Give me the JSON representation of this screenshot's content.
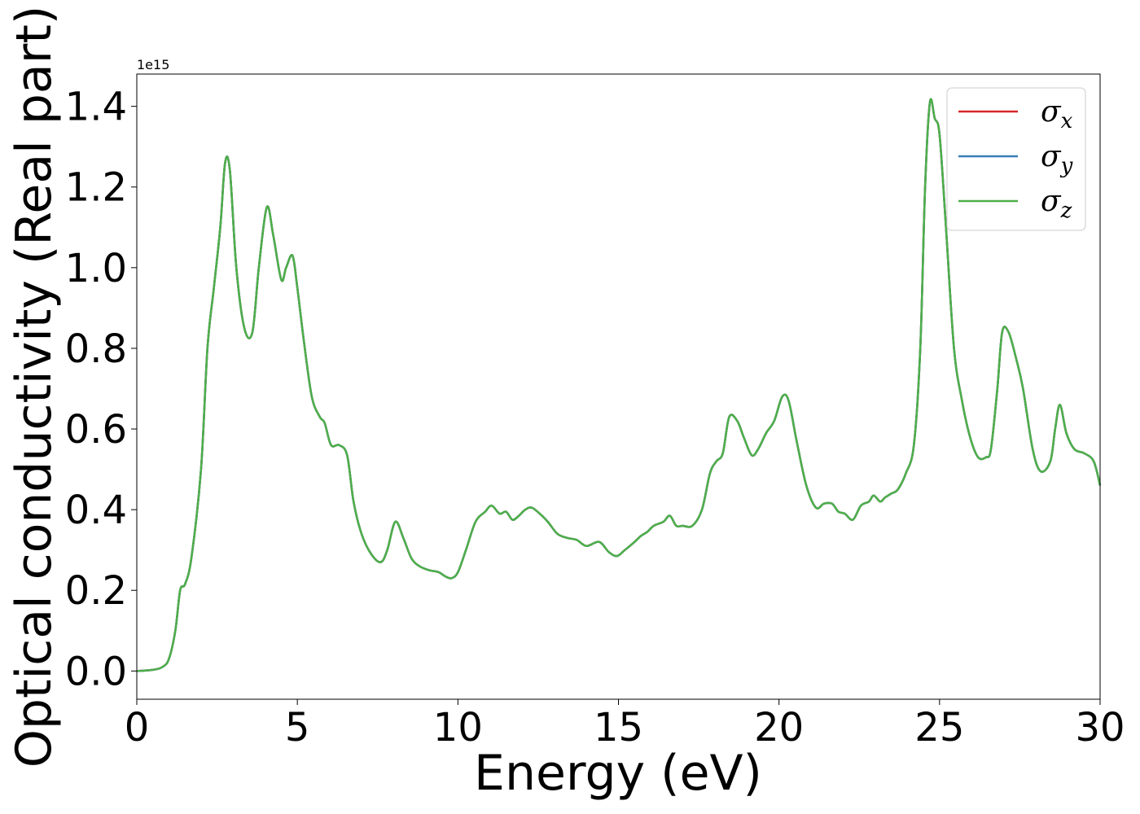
{
  "chart_data": {
    "type": "line",
    "xlabel": "Energy (eV)",
    "ylabel": "Optical conductivity (Real part)",
    "offset_text": "1e15",
    "xlim": [
      0,
      30
    ],
    "ylim": [
      -0.07,
      1.48
    ],
    "xticks": [
      0,
      5,
      10,
      15,
      20,
      25,
      30
    ],
    "xtick_labels": [
      "0",
      "5",
      "10",
      "15",
      "20",
      "25",
      "30"
    ],
    "yticks": [
      0.0,
      0.2,
      0.4,
      0.6,
      0.8,
      1.0,
      1.2,
      1.4
    ],
    "ytick_labels": [
      "0.0",
      "0.2",
      "0.4",
      "0.6",
      "0.8",
      "1.0",
      "1.2",
      "1.4"
    ],
    "legend_position": "top-right",
    "grid": false,
    "x": [
      0,
      0.5,
      0.8,
      1.0,
      1.2,
      1.35,
      1.5,
      1.7,
      2.0,
      2.2,
      2.4,
      2.6,
      2.75,
      2.9,
      3.1,
      3.35,
      3.6,
      3.8,
      4.05,
      4.25,
      4.5,
      4.65,
      4.85,
      5.0,
      5.2,
      5.45,
      5.7,
      5.85,
      6.05,
      6.3,
      6.55,
      6.75,
      7.0,
      7.3,
      7.6,
      7.8,
      8.05,
      8.3,
      8.55,
      8.8,
      9.1,
      9.4,
      9.6,
      9.8,
      10.0,
      10.25,
      10.55,
      10.85,
      11.05,
      11.3,
      11.5,
      11.7,
      11.9,
      12.1,
      12.3,
      12.55,
      12.8,
      13.1,
      13.4,
      13.7,
      14.0,
      14.4,
      14.7,
      14.95,
      15.2,
      15.5,
      15.7,
      15.9,
      16.1,
      16.4,
      16.6,
      16.8,
      17.0,
      17.3,
      17.6,
      17.85,
      18.05,
      18.25,
      18.45,
      18.7,
      18.9,
      19.15,
      19.35,
      19.6,
      19.85,
      20.1,
      20.3,
      20.55,
      20.85,
      21.15,
      21.4,
      21.65,
      21.85,
      22.05,
      22.3,
      22.55,
      22.8,
      22.95,
      23.15,
      23.3,
      23.5,
      23.7,
      23.95,
      24.2,
      24.4,
      24.55,
      24.7,
      24.85,
      25.0,
      25.2,
      25.45,
      25.7,
      25.95,
      26.2,
      26.45,
      26.6,
      26.8,
      26.95,
      27.15,
      27.4,
      27.6,
      27.9,
      28.15,
      28.45,
      28.6,
      28.75,
      28.95,
      29.2,
      29.5,
      29.8,
      30.0
    ],
    "series": [
      {
        "name": "σx",
        "color": "#d62728",
        "values": [
          0.0,
          0.003,
          0.01,
          0.03,
          0.1,
          0.2,
          0.215,
          0.28,
          0.5,
          0.8,
          0.95,
          1.1,
          1.26,
          1.24,
          1.0,
          0.85,
          0.84,
          1.0,
          1.15,
          1.08,
          0.97,
          1.0,
          1.03,
          0.95,
          0.82,
          0.68,
          0.63,
          0.615,
          0.56,
          0.56,
          0.535,
          0.42,
          0.34,
          0.29,
          0.27,
          0.3,
          0.37,
          0.33,
          0.28,
          0.26,
          0.25,
          0.245,
          0.235,
          0.23,
          0.245,
          0.3,
          0.37,
          0.395,
          0.41,
          0.39,
          0.395,
          0.375,
          0.385,
          0.4,
          0.405,
          0.39,
          0.37,
          0.34,
          0.33,
          0.325,
          0.31,
          0.32,
          0.295,
          0.285,
          0.3,
          0.32,
          0.335,
          0.345,
          0.36,
          0.37,
          0.385,
          0.36,
          0.36,
          0.36,
          0.4,
          0.49,
          0.52,
          0.54,
          0.63,
          0.62,
          0.58,
          0.535,
          0.55,
          0.59,
          0.62,
          0.68,
          0.67,
          0.57,
          0.46,
          0.405,
          0.415,
          0.415,
          0.395,
          0.39,
          0.375,
          0.41,
          0.42,
          0.435,
          0.42,
          0.43,
          0.44,
          0.45,
          0.49,
          0.56,
          0.8,
          1.2,
          1.41,
          1.37,
          1.33,
          1.1,
          0.8,
          0.67,
          0.58,
          0.53,
          0.53,
          0.55,
          0.7,
          0.84,
          0.84,
          0.77,
          0.7,
          0.55,
          0.495,
          0.52,
          0.6,
          0.66,
          0.59,
          0.55,
          0.54,
          0.52,
          0.46
        ]
      },
      {
        "name": "σy",
        "color": "#377eb8",
        "values": [
          0.0,
          0.003,
          0.01,
          0.03,
          0.1,
          0.2,
          0.215,
          0.28,
          0.5,
          0.8,
          0.95,
          1.1,
          1.26,
          1.24,
          1.0,
          0.85,
          0.84,
          1.0,
          1.15,
          1.08,
          0.97,
          1.0,
          1.03,
          0.95,
          0.82,
          0.68,
          0.63,
          0.615,
          0.56,
          0.56,
          0.535,
          0.42,
          0.34,
          0.29,
          0.27,
          0.3,
          0.37,
          0.33,
          0.28,
          0.26,
          0.25,
          0.245,
          0.235,
          0.23,
          0.245,
          0.3,
          0.37,
          0.395,
          0.41,
          0.39,
          0.395,
          0.375,
          0.385,
          0.4,
          0.405,
          0.39,
          0.37,
          0.34,
          0.33,
          0.325,
          0.31,
          0.32,
          0.295,
          0.285,
          0.3,
          0.32,
          0.335,
          0.345,
          0.36,
          0.37,
          0.385,
          0.36,
          0.36,
          0.36,
          0.4,
          0.49,
          0.52,
          0.54,
          0.63,
          0.62,
          0.58,
          0.535,
          0.55,
          0.59,
          0.62,
          0.68,
          0.67,
          0.57,
          0.46,
          0.405,
          0.415,
          0.415,
          0.395,
          0.39,
          0.375,
          0.41,
          0.42,
          0.435,
          0.42,
          0.43,
          0.44,
          0.45,
          0.49,
          0.56,
          0.8,
          1.2,
          1.41,
          1.37,
          1.33,
          1.1,
          0.8,
          0.67,
          0.58,
          0.53,
          0.53,
          0.55,
          0.7,
          0.84,
          0.84,
          0.77,
          0.7,
          0.55,
          0.495,
          0.52,
          0.6,
          0.66,
          0.59,
          0.55,
          0.54,
          0.52,
          0.46
        ]
      },
      {
        "name": "σz",
        "color": "#4daf4a",
        "values": [
          0.0,
          0.003,
          0.01,
          0.03,
          0.1,
          0.2,
          0.215,
          0.28,
          0.5,
          0.8,
          0.95,
          1.1,
          1.26,
          1.24,
          1.0,
          0.85,
          0.84,
          1.0,
          1.15,
          1.08,
          0.97,
          1.0,
          1.03,
          0.95,
          0.82,
          0.68,
          0.63,
          0.615,
          0.56,
          0.56,
          0.535,
          0.42,
          0.34,
          0.29,
          0.27,
          0.3,
          0.37,
          0.33,
          0.28,
          0.26,
          0.25,
          0.245,
          0.235,
          0.23,
          0.245,
          0.3,
          0.37,
          0.395,
          0.41,
          0.39,
          0.395,
          0.375,
          0.385,
          0.4,
          0.405,
          0.39,
          0.37,
          0.34,
          0.33,
          0.325,
          0.31,
          0.32,
          0.295,
          0.285,
          0.3,
          0.32,
          0.335,
          0.345,
          0.36,
          0.37,
          0.385,
          0.36,
          0.36,
          0.36,
          0.4,
          0.49,
          0.52,
          0.54,
          0.63,
          0.62,
          0.58,
          0.535,
          0.55,
          0.59,
          0.62,
          0.68,
          0.67,
          0.57,
          0.46,
          0.405,
          0.415,
          0.415,
          0.395,
          0.39,
          0.375,
          0.41,
          0.42,
          0.435,
          0.42,
          0.43,
          0.44,
          0.45,
          0.49,
          0.56,
          0.8,
          1.2,
          1.41,
          1.37,
          1.33,
          1.1,
          0.8,
          0.67,
          0.58,
          0.53,
          0.53,
          0.55,
          0.7,
          0.84,
          0.84,
          0.77,
          0.7,
          0.55,
          0.495,
          0.52,
          0.6,
          0.66,
          0.59,
          0.55,
          0.54,
          0.52,
          0.46
        ]
      }
    ]
  }
}
